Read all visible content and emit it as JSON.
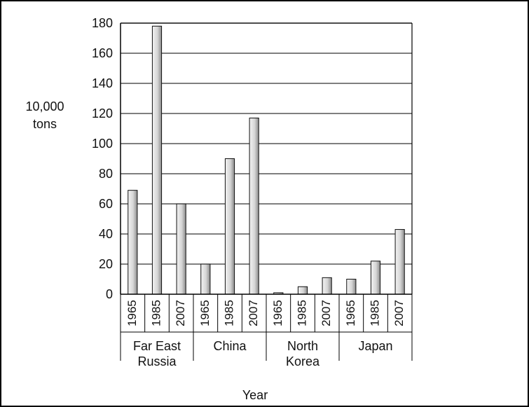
{
  "chart_data": {
    "type": "bar",
    "title": "",
    "ylabel_line1": "10,000",
    "ylabel_line2": "tons",
    "xlabel": "Year",
    "ylim": [
      0,
      180
    ],
    "yticks": [
      0,
      20,
      40,
      60,
      80,
      100,
      120,
      140,
      160,
      180
    ],
    "grid": true,
    "groups": [
      {
        "name_line1": "Far East",
        "name_line2": "Russia",
        "years": [
          "1965",
          "1985",
          "2007"
        ],
        "values": [
          69,
          178,
          60
        ]
      },
      {
        "name_line1": "China",
        "name_line2": "",
        "years": [
          "1965",
          "1985",
          "2007"
        ],
        "values": [
          20,
          90,
          117
        ]
      },
      {
        "name_line1": "North",
        "name_line2": "Korea",
        "years": [
          "1965",
          "1985",
          "2007"
        ],
        "values": [
          1,
          5,
          11
        ]
      },
      {
        "name_line1": "Japan",
        "name_line2": "",
        "years": [
          "1965",
          "1985",
          "2007"
        ],
        "values": [
          10,
          22,
          43
        ]
      }
    ],
    "colors": {
      "bar_light": "#f2f2f2",
      "bar_dark": "#8c8c8c",
      "axis": "#000000",
      "grid": "#333333"
    }
  }
}
